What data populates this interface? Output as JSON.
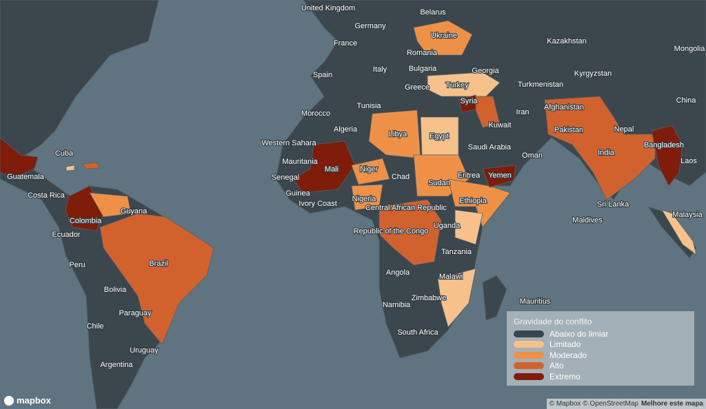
{
  "map": {
    "labels": [
      "United Kingdom",
      "Belarus",
      "Germany",
      "Ukraine",
      "Kazakhstan",
      "Mongolia",
      "France",
      "Romania",
      "Bulgaria",
      "Georgia",
      "Kyrgyzstan",
      "Spain",
      "Italy",
      "Greece",
      "Turkey",
      "Turkmenistan",
      "China",
      "Tunisia",
      "Syria",
      "Afghanistan",
      "Morocco",
      "Iran",
      "Algeria",
      "Libya",
      "Egypt",
      "Kuwait",
      "Pakistan",
      "Nepal",
      "Western Sahara",
      "Saudi Arabia",
      "Bangladesh",
      "Mauritania",
      "Mali",
      "Niger",
      "Chad",
      "Oman",
      "India",
      "Laos",
      "Senegal",
      "Eritrea",
      "Yemen",
      "Sudan",
      "Guinea",
      "Ivory Coast",
      "Nigeria",
      "Ethiopia",
      "Central African Republic",
      "Sri Lanka",
      "Malaysia",
      "Maldives",
      "Republic of the Congo",
      "Uganda",
      "Tanzania",
      "Angola",
      "Malawi",
      "Zimbabwe",
      "Namibia",
      "Mauritius",
      "South Africa",
      "Cuba",
      "Guatemala",
      "Costa Rica",
      "Guyana",
      "Colombia",
      "Ecuador",
      "Peru",
      "Brazil",
      "Bolivia",
      "Paraguay",
      "Chile",
      "Uruguay",
      "Argentina"
    ]
  },
  "legend": {
    "title": "Gravidade do conflito",
    "items": [
      {
        "name": "Abaixo do limiar",
        "color": "#3b454c"
      },
      {
        "name": "Limitado",
        "color": "#f6c18b"
      },
      {
        "name": "Moderado",
        "color": "#ee9147"
      },
      {
        "name": "Alto",
        "color": "#d1622e"
      },
      {
        "name": "Extremo",
        "color": "#7f1c0a"
      }
    ]
  },
  "attribution": {
    "text": "© Mapbox © OpenStreetMap",
    "link": "Melhore este mapa"
  },
  "logo": "mapbox"
}
